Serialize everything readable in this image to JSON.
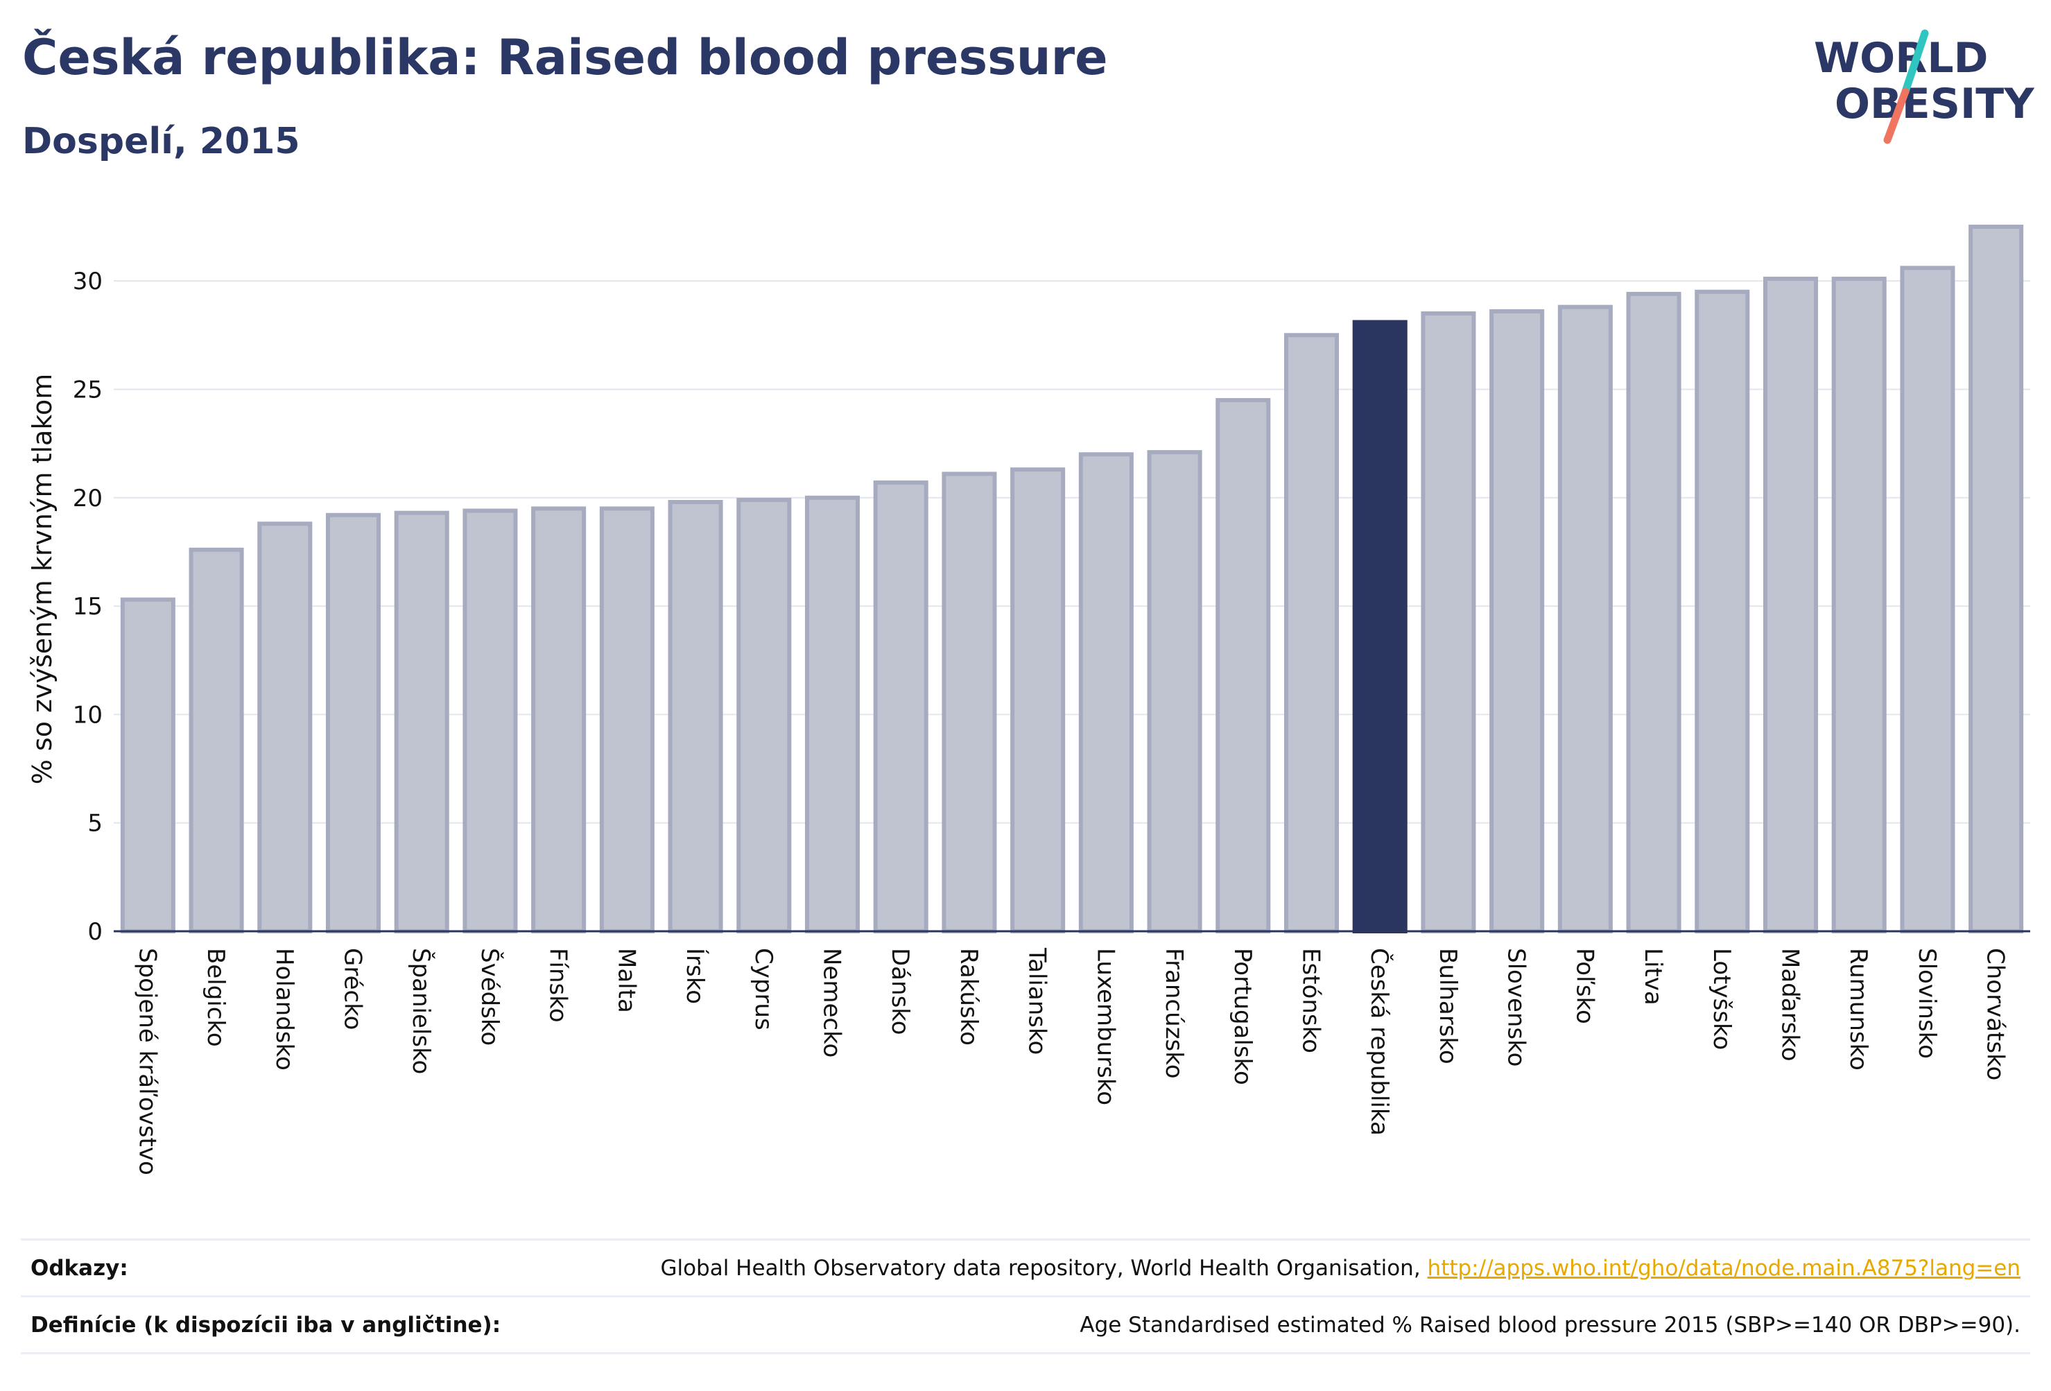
{
  "header": {
    "title": "Česká republika: Raised blood pressure",
    "subtitle": "Dospelí, 2015"
  },
  "logo": {
    "line1": "WORLD",
    "line2": "OBESITY"
  },
  "colors": {
    "title": "#2b3764",
    "highlight": "#2a3560",
    "bar_fill": "#c0c4d1",
    "bar_stroke": "#a6abc0",
    "grid": "#e4e6ee",
    "axis": "#2a3560",
    "logo_dark": "#2b3764",
    "logo_teal": "#2fc5c0",
    "logo_coral": "#f07560",
    "link": "#e8a800"
  },
  "chart_data": {
    "type": "bar",
    "ylabel": "% so zvýšeným krvným tlakom",
    "ylim": [
      0,
      32.5
    ],
    "yticks": [
      0,
      5,
      10,
      15,
      20,
      25,
      30
    ],
    "grid": true,
    "highlight": "Česká republika",
    "categories": [
      "Spojené kráľovstvo",
      "Belgicko",
      "Holandsko",
      "Grécko",
      "Španielsko",
      "Švédsko",
      "Fínsko",
      "Malta",
      "Írsko",
      "Cyprus",
      "Nemecko",
      "Dánsko",
      "Rakúsko",
      "Taliansko",
      "Luxembursko",
      "Francúzsko",
      "Portugalsko",
      "Estónsko",
      "Česká republika",
      "Bulharsko",
      "Slovensko",
      "Poľsko",
      "Litva",
      "Lotyšsko",
      "Maďarsko",
      "Rumunsko",
      "Slovinsko",
      "Chorvátsko"
    ],
    "values": [
      15.3,
      17.6,
      18.8,
      19.2,
      19.3,
      19.4,
      19.5,
      19.5,
      19.8,
      19.9,
      20.0,
      20.7,
      21.1,
      21.3,
      22.0,
      22.1,
      24.5,
      27.5,
      28.1,
      28.5,
      28.6,
      28.8,
      29.4,
      29.5,
      30.1,
      30.1,
      30.6,
      32.5
    ]
  },
  "references": {
    "sources_label": "Odkazy:",
    "sources_text": "Global Health Observatory data repository, World Health Organisation, ",
    "sources_link": "http://apps.who.int/gho/data/node.main.A875?lang=en",
    "definitions_label": "Definície (k dispozícii iba v angličtine):",
    "definitions_text": "Age Standardised estimated % Raised blood pressure 2015 (SBP>=140 OR DBP>=90)."
  }
}
